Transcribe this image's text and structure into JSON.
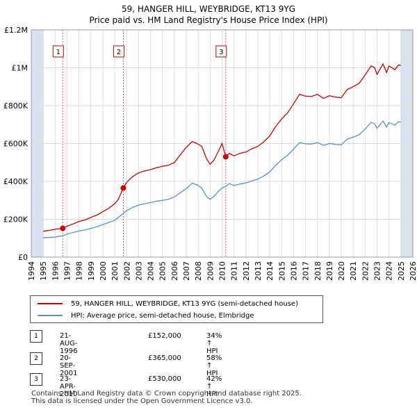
{
  "title_line1": "59, HANGER HILL, WEYBRIDGE, KT13 9YG",
  "title_line2": "Price paid vs. HM Land Registry's House Price Index (HPI)",
  "colors": {
    "property": "#cc0000",
    "hpi": "#5b8fcc",
    "shade": "#dde5f1"
  },
  "chart_data": {
    "type": "line",
    "x_range": [
      1994,
      2026
    ],
    "y_range": [
      0,
      1200000
    ],
    "y_ticks": [
      {
        "value": 0,
        "label": "£0"
      },
      {
        "value": 200000,
        "label": "£200K"
      },
      {
        "value": 400000,
        "label": "£400K"
      },
      {
        "value": 600000,
        "label": "£600K"
      },
      {
        "value": 800000,
        "label": "£800K"
      },
      {
        "value": 1000000,
        "label": "£1M"
      },
      {
        "value": 1200000,
        "label": "£1.2M"
      }
    ],
    "x_ticks": [
      1994,
      1995,
      1996,
      1997,
      1998,
      1999,
      2000,
      2001,
      2002,
      2003,
      2004,
      2005,
      2006,
      2007,
      2008,
      2009,
      2010,
      2011,
      2012,
      2013,
      2014,
      2015,
      2016,
      2017,
      2018,
      2019,
      2020,
      2021,
      2022,
      2023,
      2024,
      2025,
      2026
    ],
    "grid": true,
    "shaded_before": 1995.0,
    "shaded_after": 2025.0,
    "series": [
      {
        "name": "59, HANGER HILL, WEYBRIDGE, KT13 9YG (semi-detached house)",
        "color": "#cc0000",
        "points": [
          [
            1995.0,
            137000
          ],
          [
            1995.5,
            141000
          ],
          [
            1996.0,
            147000
          ],
          [
            1996.64,
            152000
          ],
          [
            1997.0,
            163000
          ],
          [
            1997.5,
            175000
          ],
          [
            1998.0,
            188000
          ],
          [
            1998.5,
            196000
          ],
          [
            1999.0,
            210000
          ],
          [
            1999.5,
            222000
          ],
          [
            2000.0,
            240000
          ],
          [
            2000.5,
            258000
          ],
          [
            2001.0,
            282000
          ],
          [
            2001.3,
            305000
          ],
          [
            2001.72,
            365000
          ],
          [
            2002.0,
            395000
          ],
          [
            2002.5,
            425000
          ],
          [
            2003.0,
            445000
          ],
          [
            2003.5,
            455000
          ],
          [
            2004.0,
            462000
          ],
          [
            2004.5,
            472000
          ],
          [
            2005.0,
            480000
          ],
          [
            2005.5,
            485000
          ],
          [
            2006.0,
            500000
          ],
          [
            2006.5,
            540000
          ],
          [
            2007.0,
            580000
          ],
          [
            2007.5,
            610000
          ],
          [
            2007.9,
            600000
          ],
          [
            2008.3,
            585000
          ],
          [
            2008.7,
            520000
          ],
          [
            2009.0,
            490000
          ],
          [
            2009.3,
            510000
          ],
          [
            2009.7,
            560000
          ],
          [
            2010.0,
            600000
          ],
          [
            2010.31,
            530000
          ],
          [
            2010.6,
            548000
          ],
          [
            2011.0,
            535000
          ],
          [
            2011.5,
            548000
          ],
          [
            2012.0,
            555000
          ],
          [
            2012.5,
            572000
          ],
          [
            2013.0,
            585000
          ],
          [
            2013.5,
            608000
          ],
          [
            2014.0,
            640000
          ],
          [
            2014.5,
            690000
          ],
          [
            2015.0,
            730000
          ],
          [
            2015.5,
            762000
          ],
          [
            2016.0,
            810000
          ],
          [
            2016.5,
            860000
          ],
          [
            2017.0,
            850000
          ],
          [
            2017.5,
            848000
          ],
          [
            2018.0,
            860000
          ],
          [
            2018.5,
            838000
          ],
          [
            2019.0,
            852000
          ],
          [
            2019.5,
            845000
          ],
          [
            2020.0,
            842000
          ],
          [
            2020.5,
            885000
          ],
          [
            2021.0,
            900000
          ],
          [
            2021.5,
            918000
          ],
          [
            2022.0,
            962000
          ],
          [
            2022.5,
            1010000
          ],
          [
            2022.8,
            1000000
          ],
          [
            2023.0,
            965000
          ],
          [
            2023.5,
            1020000
          ],
          [
            2023.8,
            975000
          ],
          [
            2024.0,
            1010000
          ],
          [
            2024.5,
            990000
          ],
          [
            2024.8,
            1015000
          ],
          [
            2025.0,
            1012000
          ]
        ]
      },
      {
        "name": "HPI: Average price, semi-detached house, Elmbridge",
        "color": "#5b8fcc",
        "points": [
          [
            1995.0,
            102000
          ],
          [
            1995.5,
            104000
          ],
          [
            1996.0,
            106000
          ],
          [
            1996.64,
            113000
          ],
          [
            1997.0,
            122000
          ],
          [
            1997.5,
            130000
          ],
          [
            1998.0,
            138000
          ],
          [
            1998.5,
            143000
          ],
          [
            1999.0,
            152000
          ],
          [
            1999.5,
            160000
          ],
          [
            2000.0,
            172000
          ],
          [
            2000.5,
            183000
          ],
          [
            2001.0,
            195000
          ],
          [
            2001.72,
            231000
          ],
          [
            2002.0,
            245000
          ],
          [
            2002.5,
            262000
          ],
          [
            2003.0,
            275000
          ],
          [
            2003.5,
            282000
          ],
          [
            2004.0,
            288000
          ],
          [
            2004.5,
            295000
          ],
          [
            2005.0,
            300000
          ],
          [
            2005.5,
            305000
          ],
          [
            2006.0,
            318000
          ],
          [
            2006.5,
            340000
          ],
          [
            2007.0,
            362000
          ],
          [
            2007.5,
            390000
          ],
          [
            2007.9,
            382000
          ],
          [
            2008.3,
            365000
          ],
          [
            2008.7,
            320000
          ],
          [
            2009.0,
            305000
          ],
          [
            2009.3,
            320000
          ],
          [
            2009.7,
            348000
          ],
          [
            2010.0,
            365000
          ],
          [
            2010.31,
            373000
          ],
          [
            2010.6,
            388000
          ],
          [
            2011.0,
            378000
          ],
          [
            2011.5,
            386000
          ],
          [
            2012.0,
            392000
          ],
          [
            2012.5,
            403000
          ],
          [
            2013.0,
            412000
          ],
          [
            2013.5,
            428000
          ],
          [
            2014.0,
            450000
          ],
          [
            2014.5,
            485000
          ],
          [
            2015.0,
            515000
          ],
          [
            2015.5,
            538000
          ],
          [
            2016.0,
            570000
          ],
          [
            2016.5,
            605000
          ],
          [
            2017.0,
            598000
          ],
          [
            2017.5,
            597000
          ],
          [
            2018.0,
            605000
          ],
          [
            2018.5,
            590000
          ],
          [
            2019.0,
            600000
          ],
          [
            2019.5,
            595000
          ],
          [
            2020.0,
            593000
          ],
          [
            2020.5,
            623000
          ],
          [
            2021.0,
            634000
          ],
          [
            2021.5,
            646000
          ],
          [
            2022.0,
            677000
          ],
          [
            2022.5,
            712000
          ],
          [
            2022.8,
            704000
          ],
          [
            2023.0,
            680000
          ],
          [
            2023.5,
            718000
          ],
          [
            2023.8,
            687000
          ],
          [
            2024.0,
            711000
          ],
          [
            2024.5,
            697000
          ],
          [
            2024.8,
            715000
          ],
          [
            2025.0,
            713000
          ]
        ]
      }
    ],
    "sales": [
      {
        "label": "1",
        "x": 1996.64,
        "price": 152000
      },
      {
        "label": "2",
        "x": 2001.72,
        "price": 365000
      },
      {
        "label": "3",
        "x": 2010.31,
        "price": 530000
      }
    ]
  },
  "legend": {
    "property_label": "59, HANGER HILL, WEYBRIDGE, KT13 9YG (semi-detached house)",
    "hpi_label": "HPI: Average price, semi-detached house, Elmbridge"
  },
  "transactions": [
    {
      "num": "1",
      "date": "21-AUG-1996",
      "price": "£152,000",
      "hpi": "34% ↑ HPI"
    },
    {
      "num": "2",
      "date": "20-SEP-2001",
      "price": "£365,000",
      "hpi": "58% ↑ HPI"
    },
    {
      "num": "3",
      "date": "23-APR-2010",
      "price": "£530,000",
      "hpi": "42% ↑ HPI"
    }
  ],
  "footer_line1": "Contains HM Land Registry data © Crown copyright and database right 2025.",
  "footer_line2": "This data is licensed under the Open Government Licence v3.0."
}
